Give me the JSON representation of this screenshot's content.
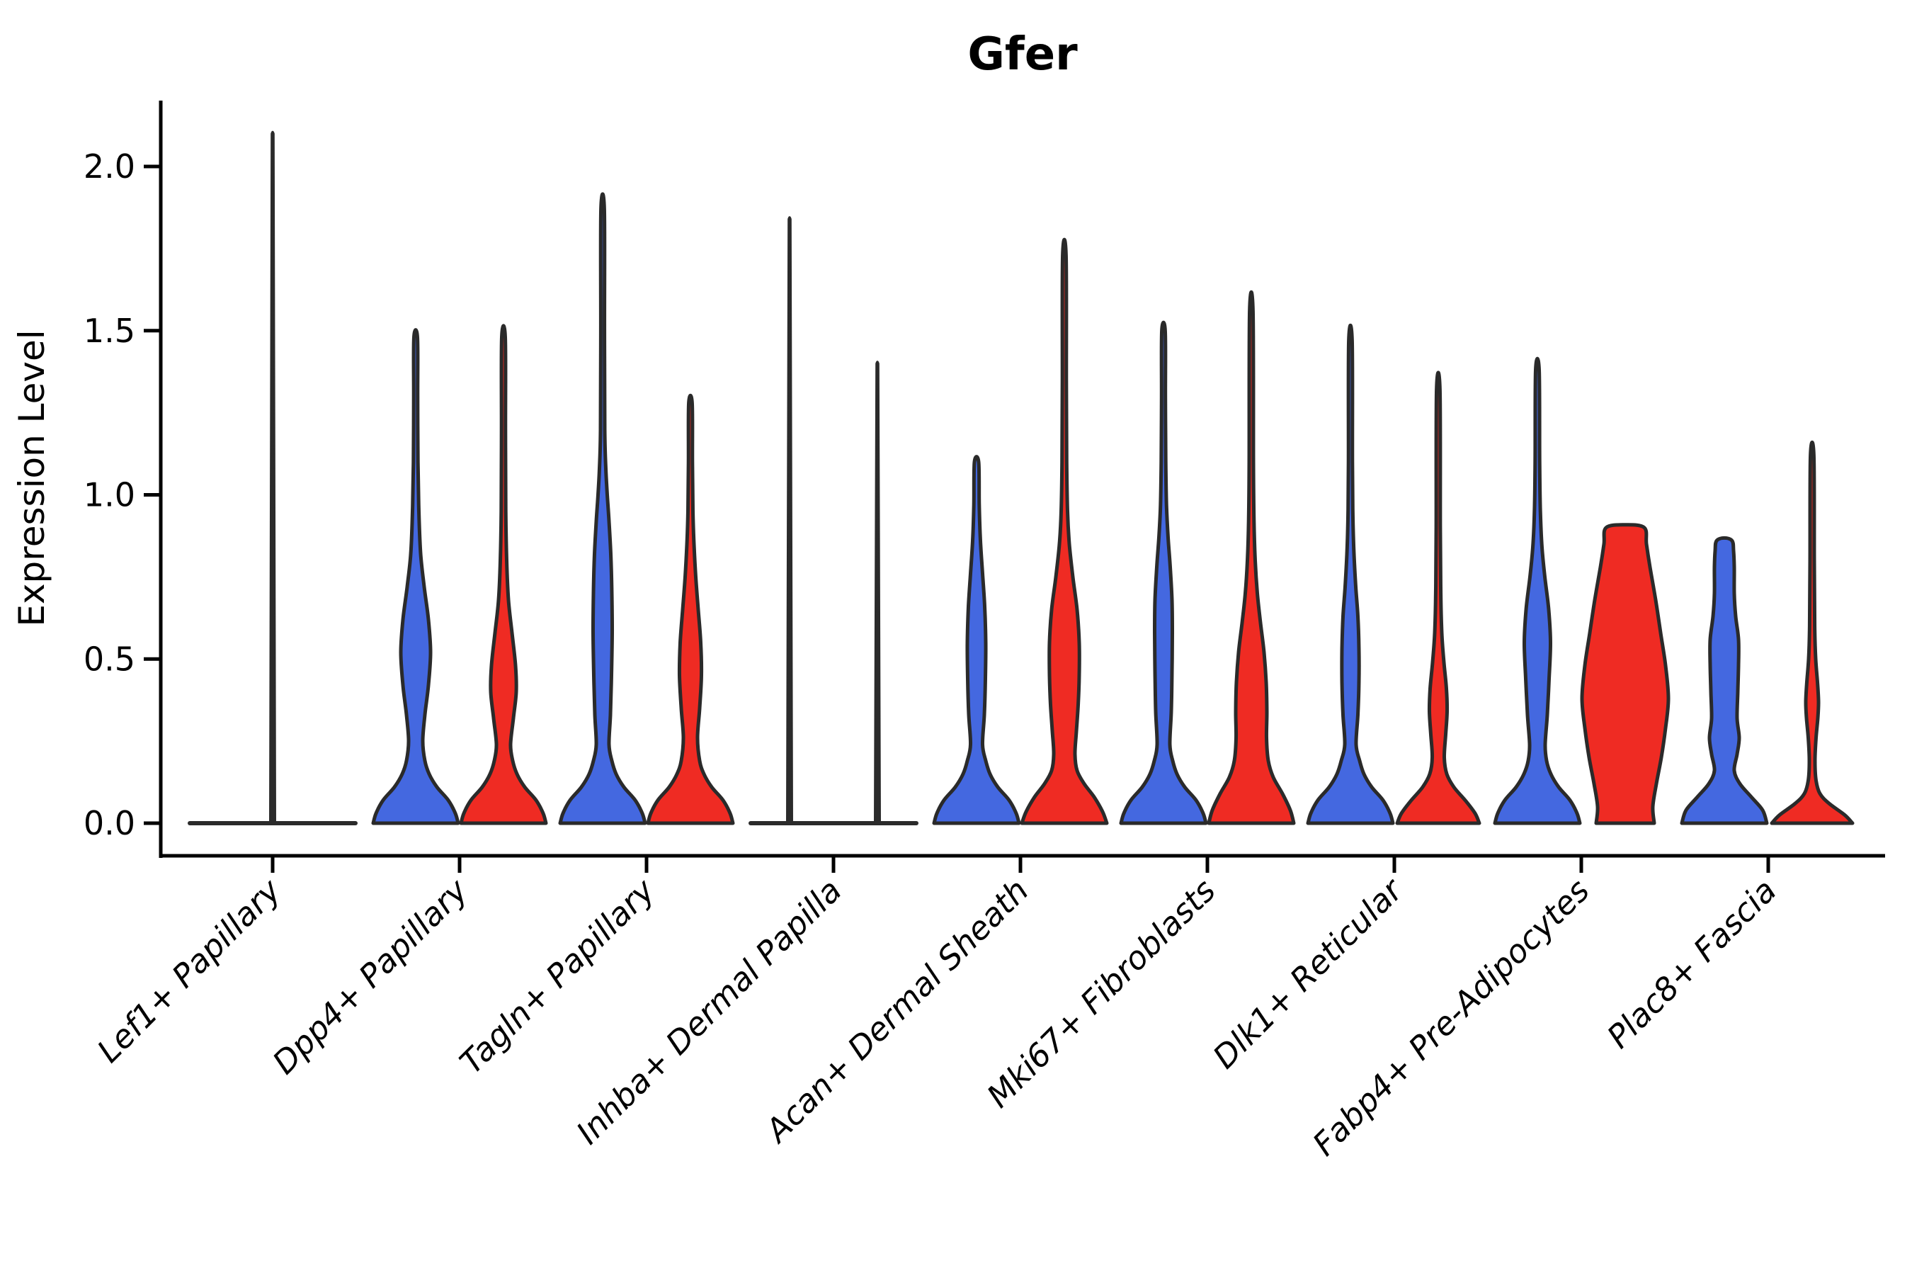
{
  "title": "Gfer",
  "axes": {
    "y_label": "Expression Level",
    "y_tick_labels": [
      "0.0",
      "0.5",
      "1.0",
      "1.5",
      "2.0"
    ],
    "y_tick_values": [
      0.0,
      0.5,
      1.0,
      1.5,
      2.0
    ]
  },
  "colors": {
    "blue_fill": "#4468E0",
    "red_fill": "#EF2B23",
    "violin_outline": "#2a2a2a",
    "axis_color": "#000000",
    "spike_color": "#2b2b2b"
  },
  "chart_data": {
    "type": "violin",
    "title": "Gfer",
    "ylabel": "Expression Level",
    "ylim": [
      0,
      2.2
    ],
    "yticks": [
      0.0,
      0.5,
      1.0,
      1.5,
      2.0
    ],
    "legend": "none",
    "grid": false,
    "categories": [
      "Lef1+ Papillary",
      "Dpp4+ Papillary",
      "Tagln+ Papillary",
      "Inhba+ Dermal Papilla",
      "Acan+ Dermal Sheath",
      "Mki67+ Fibroblasts",
      "Dlk1+ Reticular",
      "Fabp4+ Pre-Adipocytes",
      "Plac8+ Fascia"
    ],
    "series": [
      {
        "name": "group-blue",
        "color": "#4468E0",
        "max_expression": [
          2.1,
          1.48,
          1.87,
          1.84,
          1.1,
          1.5,
          1.47,
          1.38,
          0.86
        ]
      },
      {
        "name": "group-red",
        "color": "#EF2B23",
        "max_expression": [
          null,
          1.48,
          1.28,
          1.4,
          1.73,
          1.56,
          1.32,
          0.9,
          1.12
        ]
      }
    ],
    "violins": [
      {
        "category": 0,
        "side": "center",
        "type": "flatline"
      },
      {
        "category": 0,
        "side": "center",
        "type": "spike",
        "max": 2.1
      },
      {
        "category": 1,
        "side": "left",
        "type": "kde",
        "color": "blue",
        "profile": [
          [
            0,
            60
          ],
          [
            0.03,
            56
          ],
          [
            0.07,
            46
          ],
          [
            0.11,
            30
          ],
          [
            0.15,
            19
          ],
          [
            0.19,
            13
          ],
          [
            0.25,
            10
          ],
          [
            0.33,
            13
          ],
          [
            0.42,
            18
          ],
          [
            0.52,
            21
          ],
          [
            0.62,
            18
          ],
          [
            0.72,
            12
          ],
          [
            0.82,
            7
          ],
          [
            0.95,
            4.5
          ],
          [
            1.1,
            3.2
          ],
          [
            1.3,
            2.8
          ],
          [
            1.48,
            2.5
          ]
        ]
      },
      {
        "category": 1,
        "side": "right",
        "type": "kde",
        "color": "red",
        "profile": [
          [
            0,
            60
          ],
          [
            0.03,
            56
          ],
          [
            0.07,
            46
          ],
          [
            0.11,
            30
          ],
          [
            0.15,
            19
          ],
          [
            0.19,
            13
          ],
          [
            0.24,
            10
          ],
          [
            0.32,
            14
          ],
          [
            0.4,
            18
          ],
          [
            0.48,
            17
          ],
          [
            0.58,
            12
          ],
          [
            0.68,
            7
          ],
          [
            0.8,
            4.5
          ],
          [
            0.95,
            3.2
          ],
          [
            1.2,
            2.8
          ],
          [
            1.48,
            2.5
          ]
        ]
      },
      {
        "category": 2,
        "side": "left",
        "type": "kde",
        "color": "blue",
        "profile": [
          [
            0,
            60
          ],
          [
            0.03,
            56
          ],
          [
            0.07,
            46
          ],
          [
            0.11,
            30
          ],
          [
            0.15,
            19
          ],
          [
            0.19,
            13
          ],
          [
            0.24,
            9
          ],
          [
            0.33,
            11
          ],
          [
            0.45,
            12.5
          ],
          [
            0.58,
            13.5
          ],
          [
            0.7,
            13
          ],
          [
            0.82,
            11.5
          ],
          [
            0.92,
            9
          ],
          [
            1.0,
            6.5
          ],
          [
            1.08,
            4.5
          ],
          [
            1.2,
            3
          ],
          [
            1.5,
            2.6
          ],
          [
            1.87,
            2.4
          ]
        ]
      },
      {
        "category": 2,
        "side": "right",
        "type": "kde",
        "color": "red",
        "profile": [
          [
            0,
            60
          ],
          [
            0.03,
            56
          ],
          [
            0.07,
            46
          ],
          [
            0.11,
            30
          ],
          [
            0.15,
            19
          ],
          [
            0.19,
            13
          ],
          [
            0.26,
            10
          ],
          [
            0.35,
            13
          ],
          [
            0.45,
            15.5
          ],
          [
            0.55,
            14.5
          ],
          [
            0.65,
            11
          ],
          [
            0.75,
            7.5
          ],
          [
            0.85,
            5
          ],
          [
            0.95,
            3.5
          ],
          [
            1.1,
            2.8
          ],
          [
            1.28,
            2.4
          ]
        ]
      },
      {
        "category": 3,
        "side": "center",
        "type": "flatline"
      },
      {
        "category": 3,
        "side": "left",
        "type": "spike",
        "max": 1.84
      },
      {
        "category": 3,
        "side": "right",
        "type": "spike",
        "max": 1.4
      },
      {
        "category": 4,
        "side": "left",
        "type": "kde",
        "color": "blue",
        "profile": [
          [
            0,
            60
          ],
          [
            0.03,
            56
          ],
          [
            0.07,
            46
          ],
          [
            0.11,
            30
          ],
          [
            0.15,
            19
          ],
          [
            0.19,
            13
          ],
          [
            0.24,
            8.5
          ],
          [
            0.33,
            11
          ],
          [
            0.44,
            12.5
          ],
          [
            0.55,
            13
          ],
          [
            0.66,
            11.5
          ],
          [
            0.76,
            8.5
          ],
          [
            0.86,
            5.5
          ],
          [
            0.97,
            3.8
          ],
          [
            1.1,
            3
          ]
        ]
      },
      {
        "category": 4,
        "side": "right",
        "type": "kde",
        "color": "red",
        "profile": [
          [
            0,
            60
          ],
          [
            0.035,
            54
          ],
          [
            0.08,
            42
          ],
          [
            0.12,
            28
          ],
          [
            0.16,
            18
          ],
          [
            0.21,
            15
          ],
          [
            0.28,
            17
          ],
          [
            0.36,
            19.5
          ],
          [
            0.45,
            21
          ],
          [
            0.55,
            21
          ],
          [
            0.65,
            18
          ],
          [
            0.75,
            12
          ],
          [
            0.85,
            7
          ],
          [
            0.95,
            4.5
          ],
          [
            1.1,
            3.3
          ],
          [
            1.35,
            2.8
          ],
          [
            1.73,
            2.4
          ]
        ]
      },
      {
        "category": 5,
        "side": "left",
        "type": "kde",
        "color": "blue",
        "profile": [
          [
            0,
            60
          ],
          [
            0.03,
            56
          ],
          [
            0.07,
            46
          ],
          [
            0.11,
            30
          ],
          [
            0.15,
            19
          ],
          [
            0.19,
            13
          ],
          [
            0.24,
            9
          ],
          [
            0.34,
            11
          ],
          [
            0.46,
            12
          ],
          [
            0.58,
            12.5
          ],
          [
            0.68,
            12
          ],
          [
            0.78,
            9.5
          ],
          [
            0.87,
            6.5
          ],
          [
            0.97,
            4.2
          ],
          [
            1.1,
            3.2
          ],
          [
            1.3,
            2.7
          ],
          [
            1.5,
            2.4
          ]
        ]
      },
      {
        "category": 5,
        "side": "right",
        "type": "kde",
        "color": "red",
        "profile": [
          [
            0,
            60
          ],
          [
            0.04,
            55
          ],
          [
            0.09,
            44
          ],
          [
            0.14,
            31
          ],
          [
            0.19,
            24
          ],
          [
            0.26,
            21.5
          ],
          [
            0.34,
            22
          ],
          [
            0.43,
            21
          ],
          [
            0.52,
            18
          ],
          [
            0.61,
            13
          ],
          [
            0.7,
            8.5
          ],
          [
            0.8,
            5.5
          ],
          [
            0.92,
            3.8
          ],
          [
            1.1,
            3
          ],
          [
            1.56,
            2.4
          ]
        ]
      },
      {
        "category": 6,
        "side": "left",
        "type": "kde",
        "color": "blue",
        "profile": [
          [
            0,
            60
          ],
          [
            0.03,
            56
          ],
          [
            0.07,
            46
          ],
          [
            0.11,
            30
          ],
          [
            0.15,
            19
          ],
          [
            0.19,
            13
          ],
          [
            0.24,
            8
          ],
          [
            0.33,
            10.5
          ],
          [
            0.43,
            12
          ],
          [
            0.53,
            12
          ],
          [
            0.63,
            10.5
          ],
          [
            0.72,
            7.5
          ],
          [
            0.82,
            5
          ],
          [
            0.93,
            3.5
          ],
          [
            1.1,
            2.8
          ],
          [
            1.47,
            2.4
          ]
        ]
      },
      {
        "category": 6,
        "side": "right",
        "type": "kde",
        "color": "red",
        "profile": [
          [
            0,
            58
          ],
          [
            0.03,
            52
          ],
          [
            0.07,
            38
          ],
          [
            0.11,
            22
          ],
          [
            0.15,
            12
          ],
          [
            0.2,
            8.5
          ],
          [
            0.27,
            10.5
          ],
          [
            0.34,
            12.5
          ],
          [
            0.41,
            11.5
          ],
          [
            0.49,
            8
          ],
          [
            0.58,
            5
          ],
          [
            0.7,
            3.6
          ],
          [
            0.9,
            2.9
          ],
          [
            1.32,
            2.4
          ]
        ]
      },
      {
        "category": 7,
        "side": "left",
        "type": "kde",
        "color": "blue",
        "profile": [
          [
            0,
            60
          ],
          [
            0.03,
            56
          ],
          [
            0.07,
            46
          ],
          [
            0.11,
            30
          ],
          [
            0.15,
            19
          ],
          [
            0.19,
            13
          ],
          [
            0.24,
            11
          ],
          [
            0.33,
            14
          ],
          [
            0.44,
            16.5
          ],
          [
            0.55,
            18.5
          ],
          [
            0.65,
            16
          ],
          [
            0.75,
            10.5
          ],
          [
            0.84,
            6.5
          ],
          [
            0.95,
            4.2
          ],
          [
            1.1,
            3.2
          ],
          [
            1.38,
            2.5
          ]
        ]
      },
      {
        "category": 7,
        "side": "right",
        "type": "kde",
        "color": "red",
        "flat_top": true,
        "profile": [
          [
            0,
            41
          ],
          [
            0.05,
            39
          ],
          [
            0.12,
            44
          ],
          [
            0.2,
            51
          ],
          [
            0.29,
            57
          ],
          [
            0.38,
            61
          ],
          [
            0.48,
            57
          ],
          [
            0.58,
            50
          ],
          [
            0.68,
            43
          ],
          [
            0.78,
            35
          ],
          [
            0.85,
            30
          ],
          [
            0.9,
            27
          ]
        ]
      },
      {
        "category": 8,
        "side": "left",
        "type": "kde",
        "color": "blue",
        "flat_top": true,
        "profile": [
          [
            0,
            60
          ],
          [
            0.04,
            54
          ],
          [
            0.08,
            38
          ],
          [
            0.12,
            22
          ],
          [
            0.16,
            14
          ],
          [
            0.21,
            18
          ],
          [
            0.26,
            21
          ],
          [
            0.32,
            18
          ],
          [
            0.4,
            19
          ],
          [
            0.48,
            20
          ],
          [
            0.56,
            20
          ],
          [
            0.63,
            16
          ],
          [
            0.7,
            14
          ],
          [
            0.78,
            14
          ],
          [
            0.83,
            13
          ],
          [
            0.86,
            11
          ]
        ]
      },
      {
        "category": 8,
        "side": "right",
        "type": "kde",
        "color": "red",
        "profile": [
          [
            0,
            57
          ],
          [
            0.025,
            46
          ],
          [
            0.06,
            24
          ],
          [
            0.09,
            11
          ],
          [
            0.13,
            5.5
          ],
          [
            0.19,
            4
          ],
          [
            0.26,
            5.5
          ],
          [
            0.32,
            8
          ],
          [
            0.37,
            9
          ],
          [
            0.43,
            7.5
          ],
          [
            0.5,
            5
          ],
          [
            0.6,
            3.6
          ],
          [
            0.8,
            3
          ],
          [
            1.12,
            2.4
          ]
        ]
      }
    ]
  }
}
